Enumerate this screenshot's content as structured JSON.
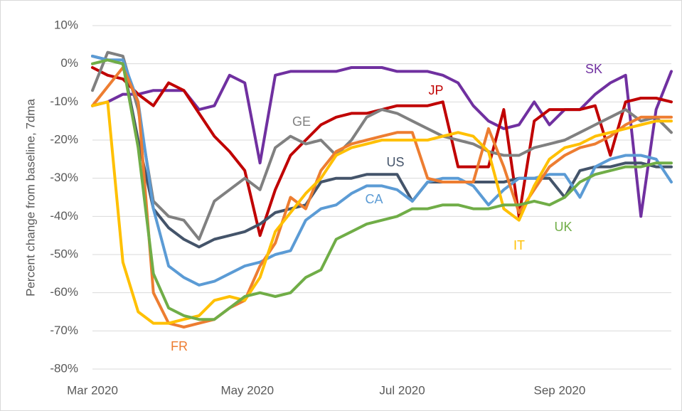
{
  "chart_data": {
    "type": "line",
    "y_label": "Percent change from baseline, 7dma",
    "x": [
      0,
      6,
      12,
      18,
      24,
      30,
      36,
      42,
      48,
      54,
      60,
      66,
      72,
      78,
      84,
      90,
      96,
      102,
      108,
      114,
      120,
      126,
      132,
      138,
      144,
      150,
      156,
      162,
      168,
      174,
      180,
      186,
      192,
      198,
      204,
      210,
      216,
      222,
      228
    ],
    "xlim": [
      0,
      228
    ],
    "xticks": [
      {
        "value": 0,
        "label": "Mar 2020"
      },
      {
        "value": 61,
        "label": "May 2020"
      },
      {
        "value": 122,
        "label": "Jul 2020"
      },
      {
        "value": 184,
        "label": "Sep 2020"
      }
    ],
    "ylim": [
      -80,
      10
    ],
    "yticks": [
      {
        "value": -80,
        "label": "-80%"
      },
      {
        "value": -70,
        "label": "-70%"
      },
      {
        "value": -60,
        "label": "-60%"
      },
      {
        "value": -50,
        "label": "-50%"
      },
      {
        "value": -40,
        "label": "-40%"
      },
      {
        "value": -30,
        "label": "-30%"
      },
      {
        "value": -20,
        "label": "-20%"
      },
      {
        "value": -10,
        "label": "-10%"
      },
      {
        "value": 0,
        "label": "0%"
      },
      {
        "value": 10,
        "label": "10%"
      }
    ],
    "grid": true,
    "series": [
      {
        "name": "SK",
        "color": "#7030a0",
        "values": [
          -11,
          -10,
          -8,
          -8,
          -7,
          -7,
          -7,
          -12,
          -11,
          -3,
          -5,
          -26,
          -3,
          -2,
          -2,
          -2,
          -2,
          -1,
          -1,
          -1,
          -2,
          -2,
          -2,
          -3,
          -5,
          -11,
          -15,
          -17,
          -16,
          -10,
          -16,
          -12,
          -12,
          -8,
          -5,
          -3,
          -40,
          -12,
          -2
        ]
      },
      {
        "name": "JP",
        "color": "#c00000",
        "values": [
          -1,
          -3,
          -4,
          -8,
          -11,
          -5,
          -7,
          -13,
          -19,
          -23,
          -28,
          -45,
          -33,
          -24,
          -20,
          -16,
          -14,
          -13,
          -13,
          -12,
          -11,
          -11,
          -11,
          -10,
          -27,
          -27,
          -27,
          -12,
          -40,
          -15,
          -12,
          -12,
          -12,
          -11,
          -24,
          -10,
          -9,
          -9,
          -10
        ]
      },
      {
        "name": "GE",
        "color": "#808080",
        "values": [
          -7,
          3,
          2,
          -12,
          -36,
          -40,
          -41,
          -46,
          -36,
          -33,
          -30,
          -33,
          -22,
          -19,
          -21,
          -20,
          -24,
          -20,
          -14,
          -12,
          -13,
          -15,
          -17,
          -19,
          -20,
          -21,
          -23,
          -24,
          -24,
          -22,
          -21,
          -20,
          -18,
          -16,
          -14,
          -12,
          -15,
          -14,
          -18
        ]
      },
      {
        "name": "US",
        "color": "#44546a",
        "values": [
          2,
          1,
          0,
          -20,
          -38,
          -43,
          -46,
          -48,
          -46,
          -45,
          -44,
          -42,
          -39,
          -38,
          -37,
          -31,
          -30,
          -30,
          -29,
          -29,
          -29,
          -36,
          -31,
          -31,
          -31,
          -31,
          -31,
          -31,
          -30,
          -30,
          -30,
          -35,
          -28,
          -27,
          -27,
          -26,
          -26,
          -27,
          -27
        ]
      },
      {
        "name": "CA",
        "color": "#5b9bd5",
        "values": [
          2,
          1,
          1,
          -10,
          -38,
          -53,
          -56,
          -58,
          -57,
          -55,
          -53,
          -52,
          -50,
          -49,
          -41,
          -38,
          -37,
          -34,
          -32,
          -32,
          -33,
          -36,
          -31,
          -30,
          -30,
          -32,
          -37,
          -33,
          -30,
          -30,
          -29,
          -29,
          -35,
          -27,
          -25,
          -24,
          -24,
          -25,
          -31
        ]
      },
      {
        "name": "FR",
        "color": "#ed7d31",
        "values": [
          -11,
          -6,
          -1,
          -10,
          -60,
          -68,
          -69,
          -68,
          -67,
          -64,
          -62,
          -53,
          -47,
          -35,
          -38,
          -28,
          -23,
          -21,
          -20,
          -19,
          -18,
          -18,
          -30,
          -31,
          -31,
          -31,
          -17,
          -27,
          -39,
          -33,
          -27,
          -24,
          -22,
          -21,
          -19,
          -16,
          -14,
          -14,
          -14
        ]
      },
      {
        "name": "IT",
        "color": "#ffc000",
        "values": [
          -11,
          -10,
          -52,
          -65,
          -68,
          -68,
          -67,
          -66,
          -62,
          -61,
          -62,
          -56,
          -44,
          -39,
          -34,
          -30,
          -24,
          -22,
          -21,
          -20,
          -20,
          -20,
          -20,
          -19,
          -18,
          -19,
          -23,
          -38,
          -41,
          -32,
          -25,
          -22,
          -21,
          -19,
          -18,
          -17,
          -16,
          -15,
          -15
        ]
      },
      {
        "name": "UK",
        "color": "#70ad47",
        "values": [
          0,
          1,
          0,
          -22,
          -55,
          -64,
          -66,
          -67,
          -67,
          -64,
          -61,
          -60,
          -61,
          -60,
          -56,
          -54,
          -46,
          -44,
          -42,
          -41,
          -40,
          -38,
          -38,
          -37,
          -37,
          -38,
          -38,
          -37,
          -37,
          -36,
          -37,
          -35,
          -31,
          -29,
          -28,
          -27,
          -27,
          -26,
          -26
        ]
      }
    ]
  }
}
